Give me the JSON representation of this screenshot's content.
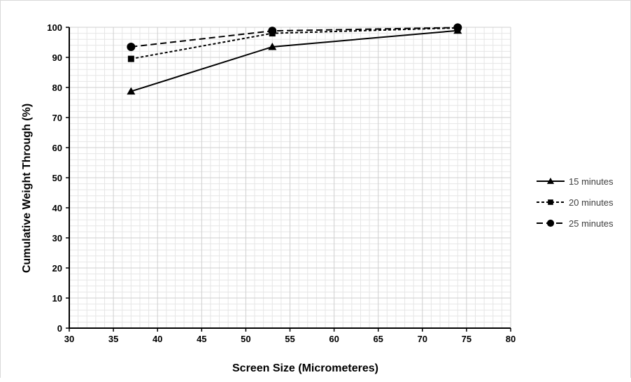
{
  "chart_data": {
    "type": "line",
    "xlabel": "Screen Size (Micrometeres)",
    "ylabel": "Cumulative Weight Through (%)",
    "xlim": [
      30,
      80
    ],
    "ylim": [
      0,
      100
    ],
    "xticks": [
      30,
      35,
      40,
      45,
      50,
      55,
      60,
      65,
      70,
      75,
      80
    ],
    "yticks": [
      0,
      10,
      20,
      30,
      40,
      50,
      60,
      70,
      80,
      90,
      100
    ],
    "grid": true,
    "legend_position": "right",
    "series": [
      {
        "name": "15 minutes",
        "x": [
          37,
          53,
          74
        ],
        "y": [
          78.7,
          93.5,
          98.9
        ],
        "marker": "triangle",
        "line_style": "solid",
        "color": "#000000"
      },
      {
        "name": "20 minutes",
        "x": [
          37,
          53,
          74
        ],
        "y": [
          89.5,
          98.0,
          99.8
        ],
        "marker": "square",
        "line_style": "dotted",
        "color": "#000000"
      },
      {
        "name": "25 minutes",
        "x": [
          37,
          53,
          74
        ],
        "y": [
          93.5,
          98.8,
          99.9
        ],
        "marker": "circle",
        "line_style": "dashed",
        "color": "#000000"
      }
    ]
  }
}
